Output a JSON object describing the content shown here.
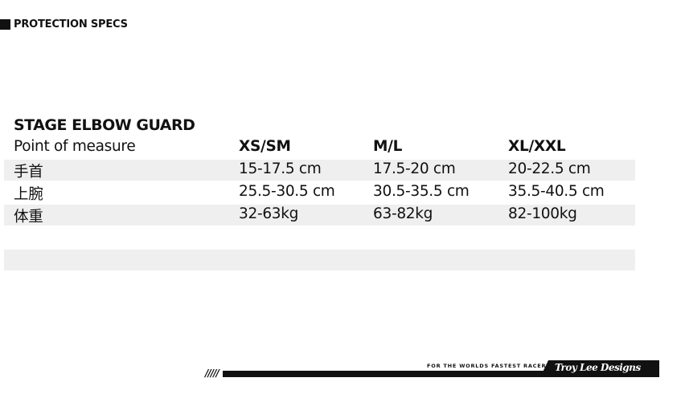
{
  "section_title": "PROTECTION SPECS",
  "product_title": "STAGE ELBOW GUARD",
  "table": {
    "headers": [
      "Point of measure",
      "XS/SM",
      "M/L",
      "XL/XXL"
    ],
    "rows": [
      [
        "手首",
        "15-17.5 cm",
        "17.5-20 cm",
        "20-22.5 cm"
      ],
      [
        "上腕",
        "25.5-30.5 cm",
        "30.5-35.5 cm",
        "35.5-40.5 cm"
      ],
      [
        "体重",
        "32-63kg",
        "63-82kg",
        "82-100kg"
      ]
    ]
  },
  "footer": {
    "tagline": "FOR THE WORLDS FASTEST RACERS",
    "logo": "Troy Lee Designs",
    "slashes": "/////"
  }
}
